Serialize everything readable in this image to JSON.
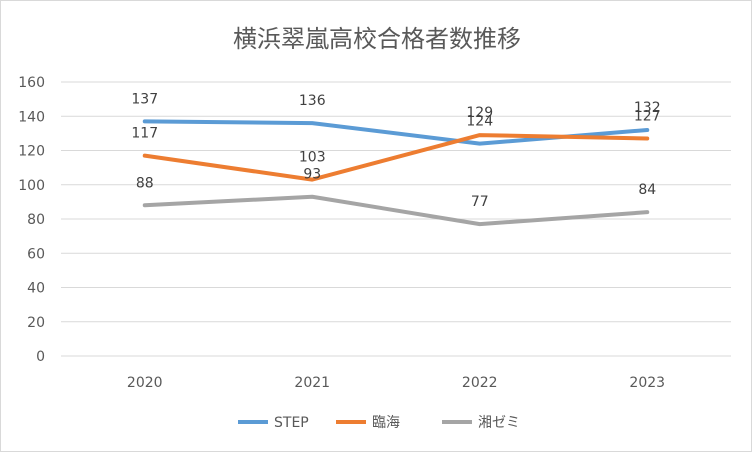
{
  "chart_data": {
    "type": "line",
    "title": "横浜翠嵐高校合格者数推移",
    "categories": [
      "2020",
      "2021",
      "2022",
      "2023"
    ],
    "ylim": [
      0,
      160
    ],
    "yticks": [
      0,
      20,
      40,
      60,
      80,
      100,
      120,
      140,
      160
    ],
    "grid": true,
    "legend_position": "bottom",
    "series": [
      {
        "name": "STEP",
        "color": "#5b9bd5",
        "values": [
          137,
          136,
          124,
          132
        ]
      },
      {
        "name": "臨海",
        "color": "#ed7d31",
        "values": [
          117,
          103,
          129,
          127
        ]
      },
      {
        "name": "湘ゼミ",
        "color": "#a5a5a5",
        "values": [
          88,
          93,
          77,
          84
        ]
      }
    ]
  }
}
